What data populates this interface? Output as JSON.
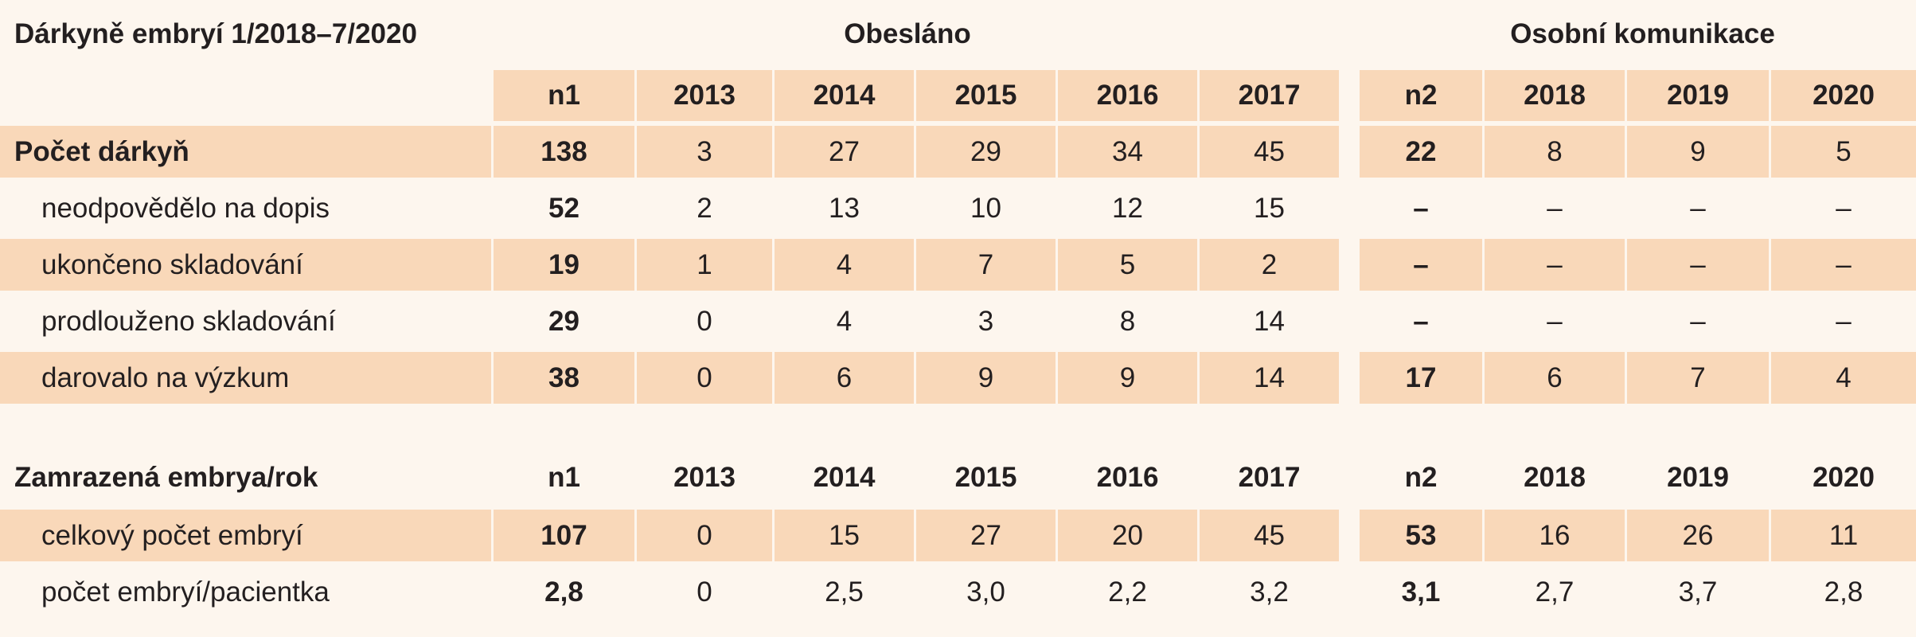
{
  "table": {
    "group_headers": {
      "title": "Dárkyně embryí 1/2018–7/2020",
      "obeslano": "Obesláno",
      "osobni": "Osobní komunikace"
    },
    "columns_top": [
      "n1",
      "2013",
      "2014",
      "2015",
      "2016",
      "2017",
      "n2",
      "2018",
      "2019",
      "2020"
    ],
    "section1_rows": [
      {
        "label": "Počet dárkyň",
        "values": [
          "138",
          "3",
          "27",
          "29",
          "34",
          "45",
          "22",
          "8",
          "9",
          "5"
        ],
        "shaded": true,
        "label_bold": true
      },
      {
        "label": "neodpovědělo na dopis",
        "values": [
          "52",
          "2",
          "13",
          "10",
          "12",
          "15",
          "–",
          "–",
          "–",
          "–"
        ],
        "shaded": false,
        "label_bold": false
      },
      {
        "label": "ukončeno skladování",
        "values": [
          "19",
          "1",
          "4",
          "7",
          "5",
          "2",
          "–",
          "–",
          "–",
          "–"
        ],
        "shaded": true,
        "label_bold": false
      },
      {
        "label": "prodlouženo skladování",
        "values": [
          "29",
          "0",
          "4",
          "3",
          "8",
          "14",
          "–",
          "–",
          "–",
          "–"
        ],
        "shaded": false,
        "label_bold": false
      },
      {
        "label": "darovalo na výzkum",
        "values": [
          "38",
          "0",
          "6",
          "9",
          "9",
          "14",
          "17",
          "6",
          "7",
          "4"
        ],
        "shaded": true,
        "label_bold": false
      }
    ],
    "section2_header": {
      "label": "Zamrazená embrya/rok",
      "columns": [
        "n1",
        "2013",
        "2014",
        "2015",
        "2016",
        "2017",
        "n2",
        "2018",
        "2019",
        "2020"
      ]
    },
    "section2_rows": [
      {
        "label": "celkový počet embryí",
        "values": [
          "107",
          "0",
          "15",
          "27",
          "20",
          "45",
          "53",
          "16",
          "26",
          "11"
        ],
        "shaded": true,
        "label_bold": false
      },
      {
        "label": "počet embryí/pacientka",
        "values": [
          "2,8",
          "0",
          "2,5",
          "3,0",
          "2,2",
          "3,2",
          "3,1",
          "2,7",
          "3,7",
          "2,8"
        ],
        "shaded": false,
        "label_bold": false
      }
    ]
  }
}
